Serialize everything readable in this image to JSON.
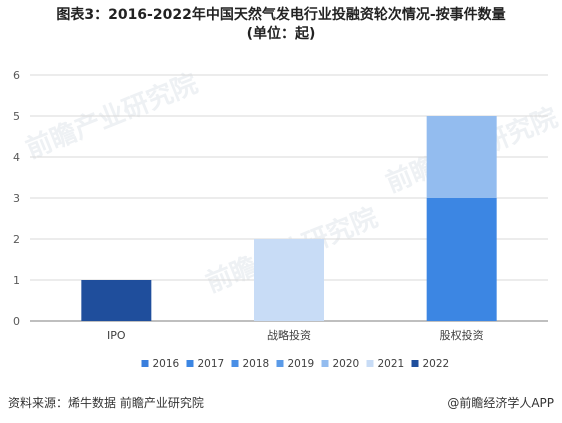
{
  "title_line1": "图表3：2016-2022年中国天然气发电行业投融资轮次情况-按事件数量",
  "title_line2": "(单位：起)",
  "source": "资料来源：烯牛数据 前瞻产业研究院",
  "brand": "@前瞻经济学人APP",
  "watermark": "前瞻产业研究院",
  "colors": {
    "2016": "#3a7fdd",
    "2017": "#3c86e3",
    "2018": "#4a8fe6",
    "2019": "#5b9be8",
    "2020": "#93bcef",
    "2021": "#c8dcf6",
    "2022": "#1f4e9c",
    "grid": "#d9d9d9",
    "axis": "#7f7f7f"
  },
  "chart_data": {
    "type": "bar",
    "stacked": true,
    "categories": [
      "IPO",
      "战略投资",
      "股权投资"
    ],
    "series": [
      {
        "name": "2016",
        "values": [
          0,
          0,
          0
        ]
      },
      {
        "name": "2017",
        "values": [
          0,
          0,
          3
        ]
      },
      {
        "name": "2018",
        "values": [
          0,
          0,
          0
        ]
      },
      {
        "name": "2019",
        "values": [
          0,
          0,
          0
        ]
      },
      {
        "name": "2020",
        "values": [
          0,
          0,
          2
        ]
      },
      {
        "name": "2021",
        "values": [
          0,
          2,
          0
        ]
      },
      {
        "name": "2022",
        "values": [
          1,
          0,
          0
        ]
      }
    ],
    "ylim": [
      0,
      6
    ],
    "yticks": [
      0,
      1,
      2,
      3,
      4,
      5,
      6
    ],
    "grid": true,
    "legend": "bottom"
  }
}
